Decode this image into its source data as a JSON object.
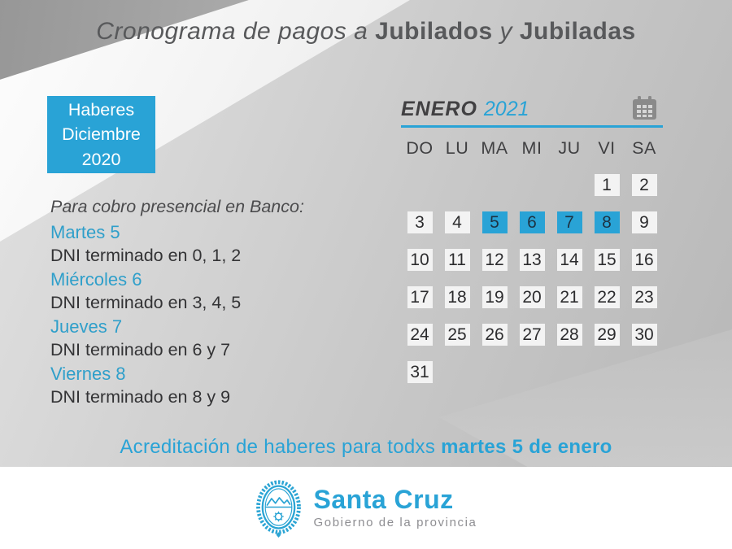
{
  "title": {
    "part1": "Cronograma de pagos a ",
    "part2": "Jubilados",
    "part3": " y ",
    "part4": "Jubiladas"
  },
  "badge": {
    "line1": "Haberes",
    "line2": "Diciembre",
    "line3": "2020"
  },
  "schedule": {
    "heading": "Para cobro presencial en Banco:",
    "items": [
      {
        "day": "Martes 5",
        "detail": "DNI terminado en 0, 1, 2"
      },
      {
        "day": "Miércoles 6",
        "detail": "DNI terminado en 3, 4, 5"
      },
      {
        "day": "Jueves 7",
        "detail": "DNI terminado en 6 y 7"
      },
      {
        "day": "Viernes 8",
        "detail": "DNI terminado en 8 y 9"
      }
    ]
  },
  "calendar": {
    "month": "ENERO",
    "year": "2021",
    "weekdays": [
      "DO",
      "LU",
      "MA",
      "MI",
      "JU",
      "VI",
      "SA"
    ],
    "weeks": [
      [
        "",
        "",
        "",
        "",
        "",
        "1",
        "2"
      ],
      [
        "3",
        "4",
        "5",
        "6",
        "7",
        "8",
        "9"
      ],
      [
        "10",
        "11",
        "12",
        "13",
        "14",
        "15",
        "16"
      ],
      [
        "17",
        "18",
        "19",
        "20",
        "21",
        "22",
        "23"
      ],
      [
        "24",
        "25",
        "26",
        "27",
        "28",
        "29",
        "30"
      ],
      [
        "31",
        "",
        "",
        "",
        "",
        "",
        ""
      ]
    ],
    "highlighted_days": [
      "5",
      "6",
      "7",
      "8"
    ]
  },
  "footer_note": {
    "regular": "Acreditación de haberes para todxs ",
    "bold": "martes 5 de enero"
  },
  "logo": {
    "name": "Santa Cruz",
    "subtitle": "Gobierno de la provincia"
  },
  "colors": {
    "accent_blue": "#29a3d6",
    "text_blue": "#2f9fca",
    "title_gray": "#58595b",
    "body_text": "#333335",
    "cell_bg": "#f3f3f3",
    "highlight_text": "#1d3344",
    "logo_subtitle_gray": "#8e8e92"
  }
}
